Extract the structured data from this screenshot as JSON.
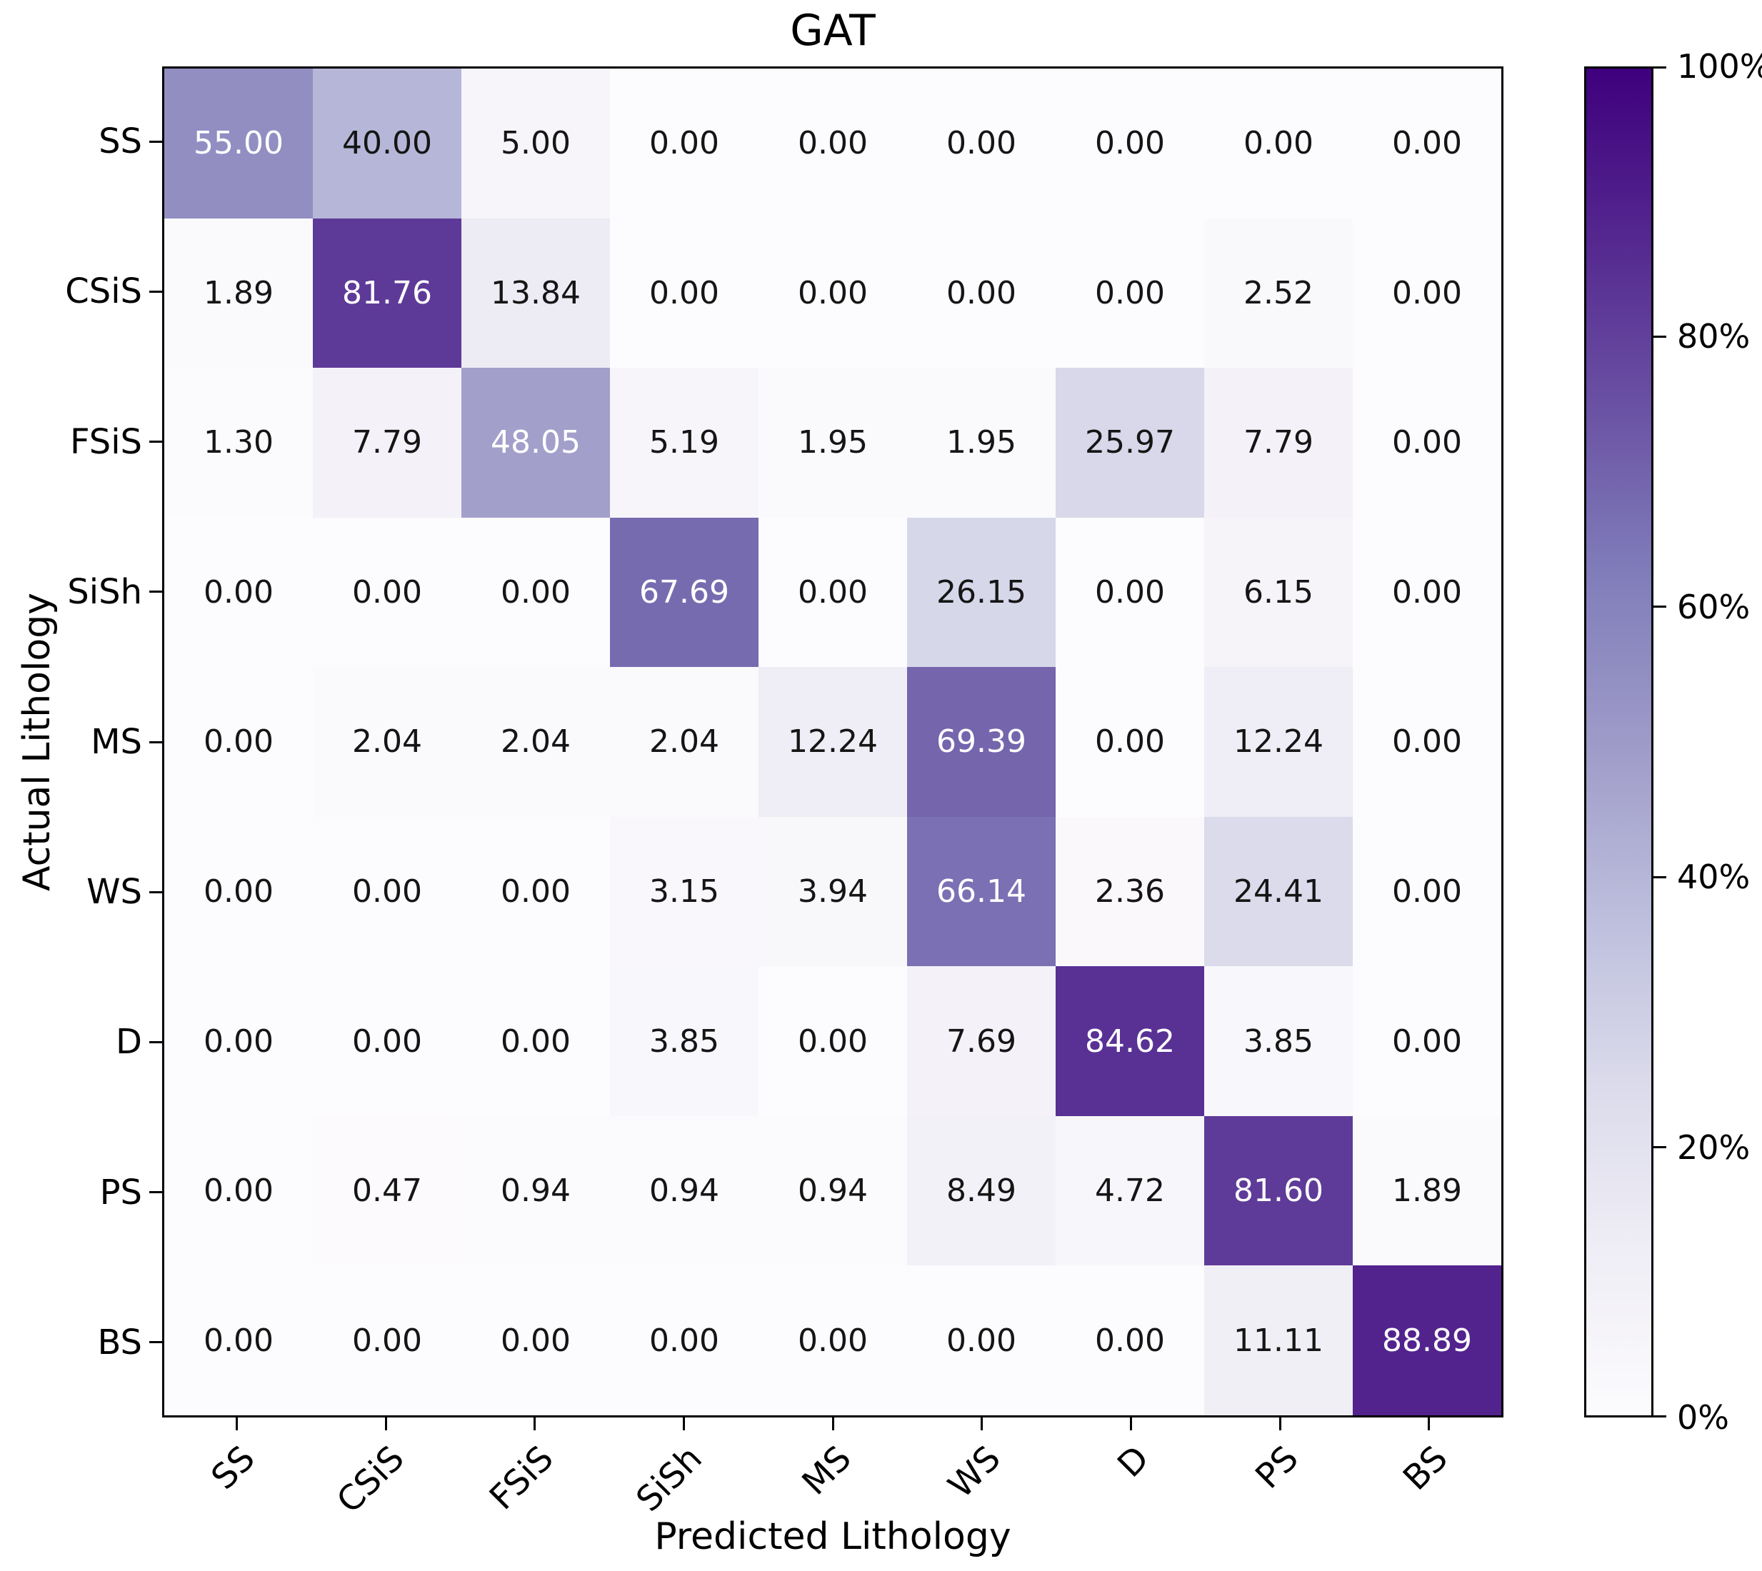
{
  "chart_data": {
    "type": "heatmap",
    "title": "GAT",
    "xlabel": "Predicted Lithology",
    "ylabel": "Actual Lithology",
    "x_categories": [
      "SS",
      "CSiS",
      "FSiS",
      "SiSh",
      "MS",
      "WS",
      "D",
      "PS",
      "BS"
    ],
    "y_categories": [
      "SS",
      "CSiS",
      "FSiS",
      "SiSh",
      "MS",
      "WS",
      "D",
      "PS",
      "BS"
    ],
    "values": [
      [
        55.0,
        40.0,
        5.0,
        0.0,
        0.0,
        0.0,
        0.0,
        0.0,
        0.0
      ],
      [
        1.89,
        81.76,
        13.84,
        0.0,
        0.0,
        0.0,
        0.0,
        2.52,
        0.0
      ],
      [
        1.3,
        7.79,
        48.05,
        5.19,
        1.95,
        1.95,
        25.97,
        7.79,
        0.0
      ],
      [
        0.0,
        0.0,
        0.0,
        67.69,
        0.0,
        26.15,
        0.0,
        6.15,
        0.0
      ],
      [
        0.0,
        2.04,
        2.04,
        2.04,
        12.24,
        69.39,
        0.0,
        12.24,
        0.0
      ],
      [
        0.0,
        0.0,
        0.0,
        3.15,
        3.94,
        66.14,
        2.36,
        24.41,
        0.0
      ],
      [
        0.0,
        0.0,
        0.0,
        3.85,
        0.0,
        7.69,
        84.62,
        3.85,
        0.0
      ],
      [
        0.0,
        0.47,
        0.94,
        0.94,
        0.94,
        8.49,
        4.72,
        81.6,
        1.89
      ],
      [
        0.0,
        0.0,
        0.0,
        0.0,
        0.0,
        0.0,
        0.0,
        11.11,
        88.89
      ]
    ],
    "vmin": 0,
    "vmax": 100,
    "colorbar_ticks": [
      {
        "percent": 0,
        "label": "0%"
      },
      {
        "percent": 20,
        "label": "20%"
      },
      {
        "percent": 40,
        "label": "40%"
      },
      {
        "percent": 60,
        "label": "60%"
      },
      {
        "percent": 80,
        "label": "80%"
      },
      {
        "percent": 100,
        "label": "100%"
      }
    ],
    "colormap": "Purples",
    "legend_position": "right-colorbar",
    "grid": false
  },
  "colors": {
    "purples_stops": [
      "#fcfbfd",
      "#efedf5",
      "#dadaeb",
      "#bcbddc",
      "#9e9ac8",
      "#807dba",
      "#6a51a3",
      "#54278f",
      "#3f007d"
    ],
    "frame": "#000000",
    "annot_dark": "#151515",
    "annot_light": "#ffffff",
    "background": "#ffffff"
  }
}
